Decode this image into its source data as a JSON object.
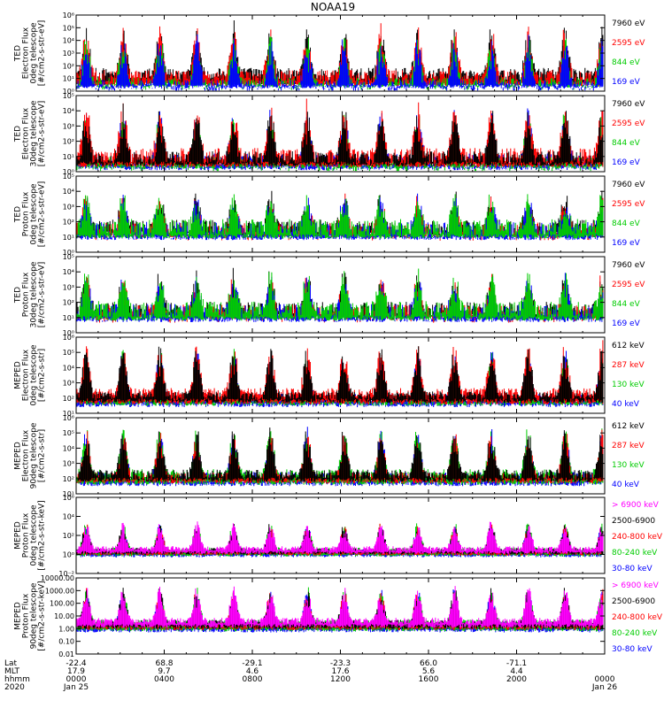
{
  "title": "NOAA19",
  "chart_data": [
    {
      "type": "line",
      "ylabel": [
        "TED",
        "Electron Flux",
        "0deg telescope",
        "[#/cm2-s-str-eV]"
      ],
      "ylim_exp": [
        0,
        6
      ],
      "ticks": [
        "10⁰",
        "10¹",
        "10²",
        "10³",
        "10⁴",
        "10⁵",
        "10⁶"
      ],
      "tick_scale": "log",
      "series": [
        {
          "name": "7960 eV",
          "color": "#000000"
        },
        {
          "name": "2595 eV",
          "color": "#ff0000"
        },
        {
          "name": "844 eV",
          "color": "#00cc00"
        },
        {
          "name": "169 eV",
          "color": "#0000ff"
        }
      ],
      "draw_order": [
        0,
        1,
        2,
        3
      ],
      "profile": {
        "base": 0.8,
        "amp": 3.2,
        "noise": 1.0,
        "seed": 11,
        "colors_dom": [
          1,
          0
        ]
      }
    },
    {
      "type": "line",
      "ylabel": [
        "TED",
        "Electron Flux",
        "30deg telescope",
        "[#/cm2-s-str-eV]"
      ],
      "ylim_exp": [
        0,
        5
      ],
      "ticks": [
        "10⁰",
        "10¹",
        "10²",
        "10³",
        "10⁴",
        "10⁵"
      ],
      "tick_scale": "log",
      "series": [
        {
          "name": "7960 eV",
          "color": "#000000"
        },
        {
          "name": "2595 eV",
          "color": "#ff0000"
        },
        {
          "name": "844 eV",
          "color": "#00cc00"
        },
        {
          "name": "169 eV",
          "color": "#0000ff"
        }
      ],
      "draw_order": [
        3,
        2,
        1,
        0
      ],
      "profile": {
        "base": 0.7,
        "amp": 2.8,
        "noise": 1.0,
        "seed": 23,
        "colors_dom": [
          1,
          3
        ]
      }
    },
    {
      "type": "line",
      "ylabel": [
        "TED",
        "Proton Flux",
        "0deg telescope",
        "[#/cm2-s-str-eV]"
      ],
      "ylim_exp": [
        0,
        5
      ],
      "ticks": [
        "10⁰",
        "10¹",
        "10²",
        "10³",
        "10⁴",
        "10⁵"
      ],
      "tick_scale": "log",
      "series": [
        {
          "name": "7960 eV",
          "color": "#000000"
        },
        {
          "name": "2595 eV",
          "color": "#ff0000"
        },
        {
          "name": "844 eV",
          "color": "#00cc00"
        },
        {
          "name": "169 eV",
          "color": "#0000ff"
        }
      ],
      "draw_order": [
        0,
        1,
        3,
        2
      ],
      "profile": {
        "base": 1.4,
        "amp": 1.8,
        "noise": 1.2,
        "seed": 37,
        "colors_dom": [
          2,
          3
        ]
      }
    },
    {
      "type": "line",
      "ylabel": [
        "TED",
        "Proton Flux",
        "30deg telescope",
        "[#/cm2-s-str-eV]"
      ],
      "ylim_exp": [
        0,
        5
      ],
      "ticks": [
        "10⁰",
        "10¹",
        "10²",
        "10³",
        "10⁴",
        "10⁵"
      ],
      "tick_scale": "log",
      "series": [
        {
          "name": "7960 eV",
          "color": "#000000"
        },
        {
          "name": "2595 eV",
          "color": "#ff0000"
        },
        {
          "name": "844 eV",
          "color": "#00cc00"
        },
        {
          "name": "169 eV",
          "color": "#0000ff"
        }
      ],
      "draw_order": [
        0,
        1,
        3,
        2
      ],
      "profile": {
        "base": 1.3,
        "amp": 1.9,
        "noise": 1.2,
        "seed": 41,
        "colors_dom": [
          2,
          3
        ]
      }
    },
    {
      "type": "line",
      "ylabel": [
        "MEPED",
        "Electron Flux",
        "0deg telescope",
        "[#/cm2-s-str]"
      ],
      "ylim_exp": [
        1,
        6
      ],
      "ticks": [
        "10¹",
        "10²",
        "10³",
        "10⁴",
        "10⁵",
        "10⁶"
      ],
      "tick_scale": "log",
      "series": [
        {
          "name": "612 keV",
          "color": "#000000"
        },
        {
          "name": "287 keV",
          "color": "#ff0000"
        },
        {
          "name": "130 keV",
          "color": "#00cc00"
        },
        {
          "name": "40 keV",
          "color": "#0000ff"
        }
      ],
      "draw_order": [
        3,
        2,
        1,
        0
      ],
      "profile": {
        "base": 2.0,
        "amp": 2.8,
        "noise": 0.6,
        "seed": 53,
        "colors_dom": [
          3,
          1
        ]
      }
    },
    {
      "type": "line",
      "ylabel": [
        "MEPED",
        "Electron Flux",
        "90deg telescope",
        "[#/cm2-s-str]"
      ],
      "ylim_exp": [
        1,
        6
      ],
      "ticks": [
        "10¹",
        "10²",
        "10³",
        "10⁴",
        "10⁵",
        "10⁶"
      ],
      "tick_scale": "log",
      "series": [
        {
          "name": "612 keV",
          "color": "#000000"
        },
        {
          "name": "287 keV",
          "color": "#ff0000"
        },
        {
          "name": "130 keV",
          "color": "#00cc00"
        },
        {
          "name": "40 keV",
          "color": "#0000ff"
        }
      ],
      "draw_order": [
        3,
        2,
        1,
        0
      ],
      "profile": {
        "base": 2.1,
        "amp": 2.6,
        "noise": 0.7,
        "seed": 67,
        "colors_dom": [
          3,
          2
        ]
      }
    },
    {
      "type": "line",
      "ylabel": [
        "MEPED",
        "Proton Flux",
        "0deg telescope",
        "[#/cm2-s-str-keV]"
      ],
      "ylim_exp": [
        -2,
        6
      ],
      "ticks": [
        "10⁻²",
        "10⁰",
        "10²",
        "10⁴",
        "10⁶"
      ],
      "tick_scale": "log2",
      "series": [
        {
          "name": "> 6900 keV",
          "color": "#ff00ff"
        },
        {
          "name": "2500-6900",
          "color": "#000000"
        },
        {
          "name": "240-800 keV",
          "color": "#ff0000"
        },
        {
          "name": "80-240 keV",
          "color": "#00cc00"
        },
        {
          "name": "30-80 keV",
          "color": "#0000ff"
        }
      ],
      "draw_order": [
        4,
        3,
        2,
        1,
        0
      ],
      "profile": {
        "base": 0.3,
        "amp": 2.4,
        "noise": 0.5,
        "seed": 79,
        "colors_dom": [
          4,
          3
        ]
      }
    },
    {
      "type": "line",
      "ylabel": [
        "MEPED",
        "Proton Flux",
        "90deg telescope",
        "[#/cm2-s-str-keV]"
      ],
      "ylim_exp": [
        -2,
        4
      ],
      "ticks": [
        "0.01",
        "0.10",
        "1.00",
        "10.00",
        "100.00",
        "1000.00",
        "10000.00"
      ],
      "tick_scale": "lin",
      "series": [
        {
          "name": "> 6900 keV",
          "color": "#ff00ff"
        },
        {
          "name": "2500-6900",
          "color": "#000000"
        },
        {
          "name": "240-800 keV",
          "color": "#ff0000"
        },
        {
          "name": "80-240 keV",
          "color": "#00cc00"
        },
        {
          "name": "30-80 keV",
          "color": "#0000ff"
        }
      ],
      "draw_order": [
        4,
        3,
        2,
        1,
        0
      ],
      "profile": {
        "base": 0.3,
        "amp": 2.3,
        "noise": 0.5,
        "seed": 97,
        "colors_dom": [
          4,
          3
        ]
      }
    }
  ],
  "x_axis": {
    "row_labels": [
      "Lat",
      "MLT",
      "hhmm",
      "2020"
    ],
    "ticks": [
      {
        "lat": "-22.4",
        "mlt": "17.9",
        "hhmm": "0000",
        "date": "Jan 25"
      },
      {
        "lat": "68.8",
        "mlt": "9.7",
        "hhmm": "0400",
        "date": ""
      },
      {
        "lat": "-29.1",
        "mlt": "4.6",
        "hhmm": "0800",
        "date": ""
      },
      {
        "lat": "-23.3",
        "mlt": "17.6",
        "hhmm": "1200",
        "date": ""
      },
      {
        "lat": "66.0",
        "mlt": "5.6",
        "hhmm": "1600",
        "date": ""
      },
      {
        "lat": "-71.1",
        "mlt": "4.4",
        "hhmm": "2000",
        "date": ""
      },
      {
        "lat": "",
        "mlt": "",
        "hhmm": "0000",
        "date": "Jan 26"
      }
    ],
    "range_hours": [
      0,
      24
    ]
  }
}
